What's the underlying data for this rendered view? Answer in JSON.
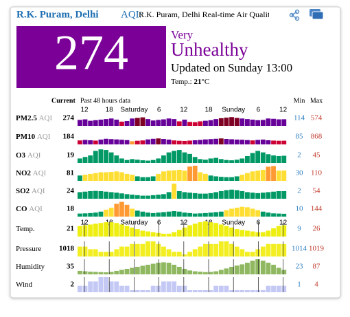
{
  "header": {
    "station": "R.K. Puram, Delhi",
    "aqi_label": "AQI:",
    "description": "R.K. Puram, Delhi Real-time Air Quality In"
  },
  "summary": {
    "aqi": 274,
    "level_line1": "Very",
    "level_line2": "Unhealthy",
    "updated": "Updated on Sunday 13:00",
    "temp_label": "Temp.:",
    "temp_value": 21,
    "temp_unit": "°C"
  },
  "table": {
    "current_header": "Current",
    "history_header": "Past 48 hours data",
    "min_header": "Min",
    "max_header": "Max",
    "time_labels": [
      "12",
      "18",
      "Saturday",
      "6",
      "12",
      "18",
      "Sunday",
      "6",
      "12"
    ],
    "aqi_scale": [
      {
        "upto": 50,
        "color": "#009966"
      },
      {
        "upto": 100,
        "color": "#ffde33"
      },
      {
        "upto": 150,
        "color": "#ff9933"
      },
      {
        "upto": 200,
        "color": "#cc0033"
      },
      {
        "upto": 300,
        "color": "#660099"
      },
      {
        "upto": 1000,
        "color": "#7e0023"
      }
    ],
    "rows": [
      {
        "name": "PM2.5",
        "unit": "AQI",
        "current": 274,
        "min": 114,
        "max": 574,
        "values": [
          250,
          270,
          220,
          240,
          260,
          280,
          300,
          260,
          190,
          210,
          300,
          320,
          340,
          280,
          230,
          250,
          270,
          300,
          280,
          200,
          260,
          180,
          170,
          200,
          220,
          240,
          280,
          310,
          330,
          350,
          320,
          300,
          280,
          260,
          240,
          250,
          300,
          290,
          270,
          274
        ]
      },
      {
        "name": "PM10",
        "unit": "AQI",
        "current": 184,
        "min": 85,
        "max": 868,
        "values": [
          200,
          230,
          210,
          190,
          250,
          300,
          280,
          260,
          240,
          220,
          150,
          180,
          200,
          260,
          300,
          320,
          290,
          250,
          200,
          180,
          170,
          190,
          210,
          230,
          260,
          280,
          300,
          320,
          290,
          270,
          250,
          240,
          220,
          200,
          230,
          250,
          210,
          190,
          180,
          184
        ]
      },
      {
        "name": "O3",
        "unit": "AQI",
        "current": 19,
        "min": 2,
        "max": 45,
        "values": [
          10,
          15,
          20,
          35,
          40,
          38,
          30,
          20,
          10,
          5,
          8,
          6,
          4,
          3,
          5,
          10,
          20,
          30,
          35,
          38,
          30,
          25,
          15,
          8,
          6,
          10,
          12,
          8,
          5,
          4,
          6,
          10,
          18,
          28,
          35,
          30,
          24,
          20,
          18,
          19
        ]
      },
      {
        "name": "NO2",
        "unit": "AQI",
        "current": 81,
        "min": 30,
        "max": 110,
        "values": [
          50,
          55,
          60,
          65,
          70,
          70,
          72,
          75,
          70,
          60,
          55,
          45,
          40,
          40,
          45,
          60,
          75,
          80,
          82,
          85,
          80,
          105,
          110,
          70,
          60,
          50,
          45,
          42,
          40,
          40,
          45,
          55,
          65,
          75,
          80,
          85,
          104,
          108,
          80,
          81
        ]
      },
      {
        "name": "SO2",
        "unit": "AQI",
        "current": 24,
        "min": 2,
        "max": 54,
        "values": [
          20,
          22,
          24,
          25,
          24,
          22,
          20,
          18,
          15,
          12,
          10,
          8,
          6,
          6,
          8,
          10,
          12,
          20,
          54,
          24,
          20,
          18,
          16,
          14,
          14,
          16,
          20,
          24,
          28,
          30,
          28,
          24,
          20,
          18,
          16,
          18,
          20,
          22,
          24,
          24
        ]
      },
      {
        "name": "CO",
        "unit": "AQI",
        "current": 18,
        "min": 10,
        "max": 144,
        "values": [
          20,
          22,
          25,
          30,
          40,
          60,
          80,
          120,
          140,
          110,
          70,
          50,
          40,
          30,
          25,
          30,
          35,
          40,
          45,
          40,
          30,
          25,
          20,
          22,
          25,
          30,
          35,
          40,
          55,
          70,
          80,
          90,
          85,
          70,
          55,
          40,
          30,
          22,
          20,
          18
        ]
      },
      {
        "name": "Temp.",
        "current": 21,
        "min": 9,
        "max": 26,
        "color": "#eeee11",
        "values": [
          20,
          21,
          22,
          23,
          24,
          25,
          25,
          24,
          22,
          20,
          18,
          16,
          14,
          13,
          12,
          11,
          10,
          10,
          12,
          15,
          18,
          21,
          23,
          25,
          26,
          25,
          24,
          22,
          20,
          18,
          16,
          15,
          14,
          13,
          12,
          12,
          14,
          17,
          20,
          21
        ]
      },
      {
        "name": "Pressure",
        "current": 1018,
        "min": 1014,
        "max": 1019,
        "color": "#f2ee22",
        "values": [
          1017,
          1017,
          1016,
          1016,
          1015,
          1015,
          1015,
          1016,
          1017,
          1017,
          1018,
          1018,
          1018,
          1019,
          1019,
          1018,
          1017,
          1016,
          1015,
          1015,
          1014,
          1015,
          1016,
          1017,
          1018,
          1018,
          1018,
          1019,
          1019,
          1018,
          1017,
          1016,
          1015,
          1015,
          1016,
          1017,
          1018,
          1018,
          1018,
          1018
        ]
      },
      {
        "name": "Humidity",
        "current": 35,
        "min": 23,
        "max": 87,
        "color": "#8fb860",
        "values": [
          30,
          28,
          26,
          25,
          24,
          23,
          25,
          30,
          35,
          40,
          45,
          50,
          55,
          60,
          65,
          70,
          72,
          70,
          60,
          50,
          40,
          32,
          28,
          26,
          24,
          25,
          28,
          35,
          42,
          50,
          56,
          62,
          70,
          80,
          87,
          80,
          70,
          60,
          45,
          35
        ]
      },
      {
        "name": "Wind",
        "current": 2,
        "min": 1,
        "max": 4,
        "color": "#c4c8f4",
        "values": [
          2,
          2,
          3,
          3,
          4,
          4,
          3,
          3,
          2,
          2,
          1,
          1,
          1,
          1,
          2,
          2,
          3,
          3,
          3,
          2,
          2,
          1,
          1,
          1,
          1,
          1,
          2,
          2,
          2,
          1,
          1,
          1,
          1,
          1,
          1,
          1,
          2,
          2,
          2,
          2
        ]
      }
    ]
  }
}
